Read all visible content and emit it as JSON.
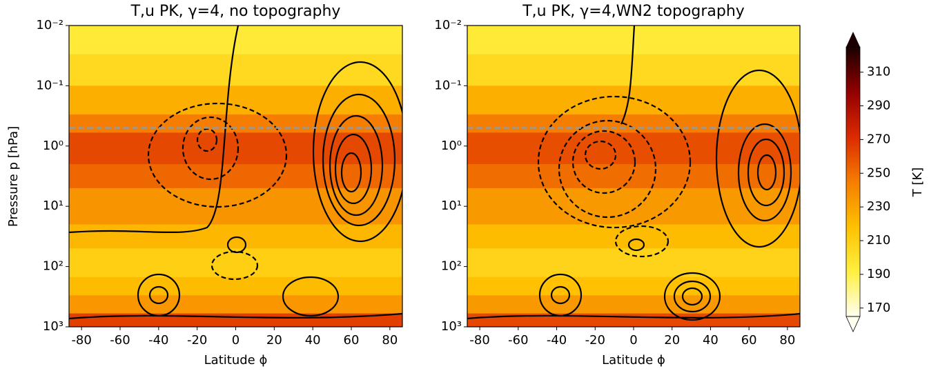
{
  "chart_data": [
    {
      "type": "contour",
      "title": "T,u PK, γ=4, no topography",
      "xlabel": "Latitude ϕ",
      "ylabel": "Pressure p [hPa]",
      "xlim": [
        -86.5,
        86.5
      ],
      "xticks": [
        -80,
        -60,
        -40,
        -20,
        0,
        20,
        40,
        60,
        80
      ],
      "ylim": [
        0.01,
        1000
      ],
      "ylog": true,
      "yinvert": true,
      "yticks": [
        {
          "value": 0.01,
          "label": "10⁻²"
        },
        {
          "value": 0.1,
          "label": "10⁻¹"
        },
        {
          "value": 1,
          "label": "10⁰"
        },
        {
          "value": 10,
          "label": "10¹"
        },
        {
          "value": 100,
          "label": "10²"
        },
        {
          "value": 1000,
          "label": "10³"
        }
      ],
      "p_edges": [
        0.01,
        0.03,
        0.1,
        0.3,
        0.6,
        2,
        5,
        20,
        50,
        150,
        300,
        600,
        1000
      ],
      "values": [
        195,
        205,
        225,
        245,
        262,
        252,
        236,
        222,
        210,
        220,
        235,
        265
      ],
      "hline": 0.5,
      "hline_color": "#999999",
      "cmap": [
        "#fffff0",
        "#fff040",
        "#ffc000",
        "#f57d00",
        "#dc2a00",
        "#920000",
        "#1a0000"
      ],
      "clim": [
        165,
        325
      ]
    },
    {
      "type": "contour",
      "title": "T,u PK, γ=4,WN2 topography",
      "xlabel": "Latitude ϕ",
      "xlim": [
        -86.5,
        86.5
      ],
      "xticks": [
        -80,
        -60,
        -40,
        -20,
        0,
        20,
        40,
        60,
        80
      ],
      "ylim": [
        0.01,
        1000
      ],
      "ylog": true,
      "yinvert": true,
      "yticks": [
        {
          "value": 0.01,
          "label": "10⁻²"
        },
        {
          "value": 0.1,
          "label": "10⁻¹"
        },
        {
          "value": 1,
          "label": "10⁰"
        },
        {
          "value": 10,
          "label": "10¹"
        },
        {
          "value": 100,
          "label": "10²"
        },
        {
          "value": 1000,
          "label": "10³"
        }
      ],
      "p_edges": [
        0.01,
        0.03,
        0.1,
        0.3,
        0.6,
        2,
        5,
        20,
        50,
        150,
        300,
        600,
        1000
      ],
      "values": [
        195,
        205,
        225,
        245,
        260,
        250,
        234,
        220,
        208,
        218,
        234,
        262
      ],
      "hline": 0.5,
      "hline_color": "#999999",
      "cmap": [
        "#fffff0",
        "#fff040",
        "#ffc000",
        "#f57d00",
        "#dc2a00",
        "#920000",
        "#1a0000"
      ],
      "clim": [
        165,
        325
      ],
      "colorbar": {
        "label": "T [K]",
        "lim": [
          165,
          325
        ],
        "ticks": [
          170,
          190,
          210,
          230,
          250,
          270,
          290,
          310
        ]
      }
    }
  ]
}
